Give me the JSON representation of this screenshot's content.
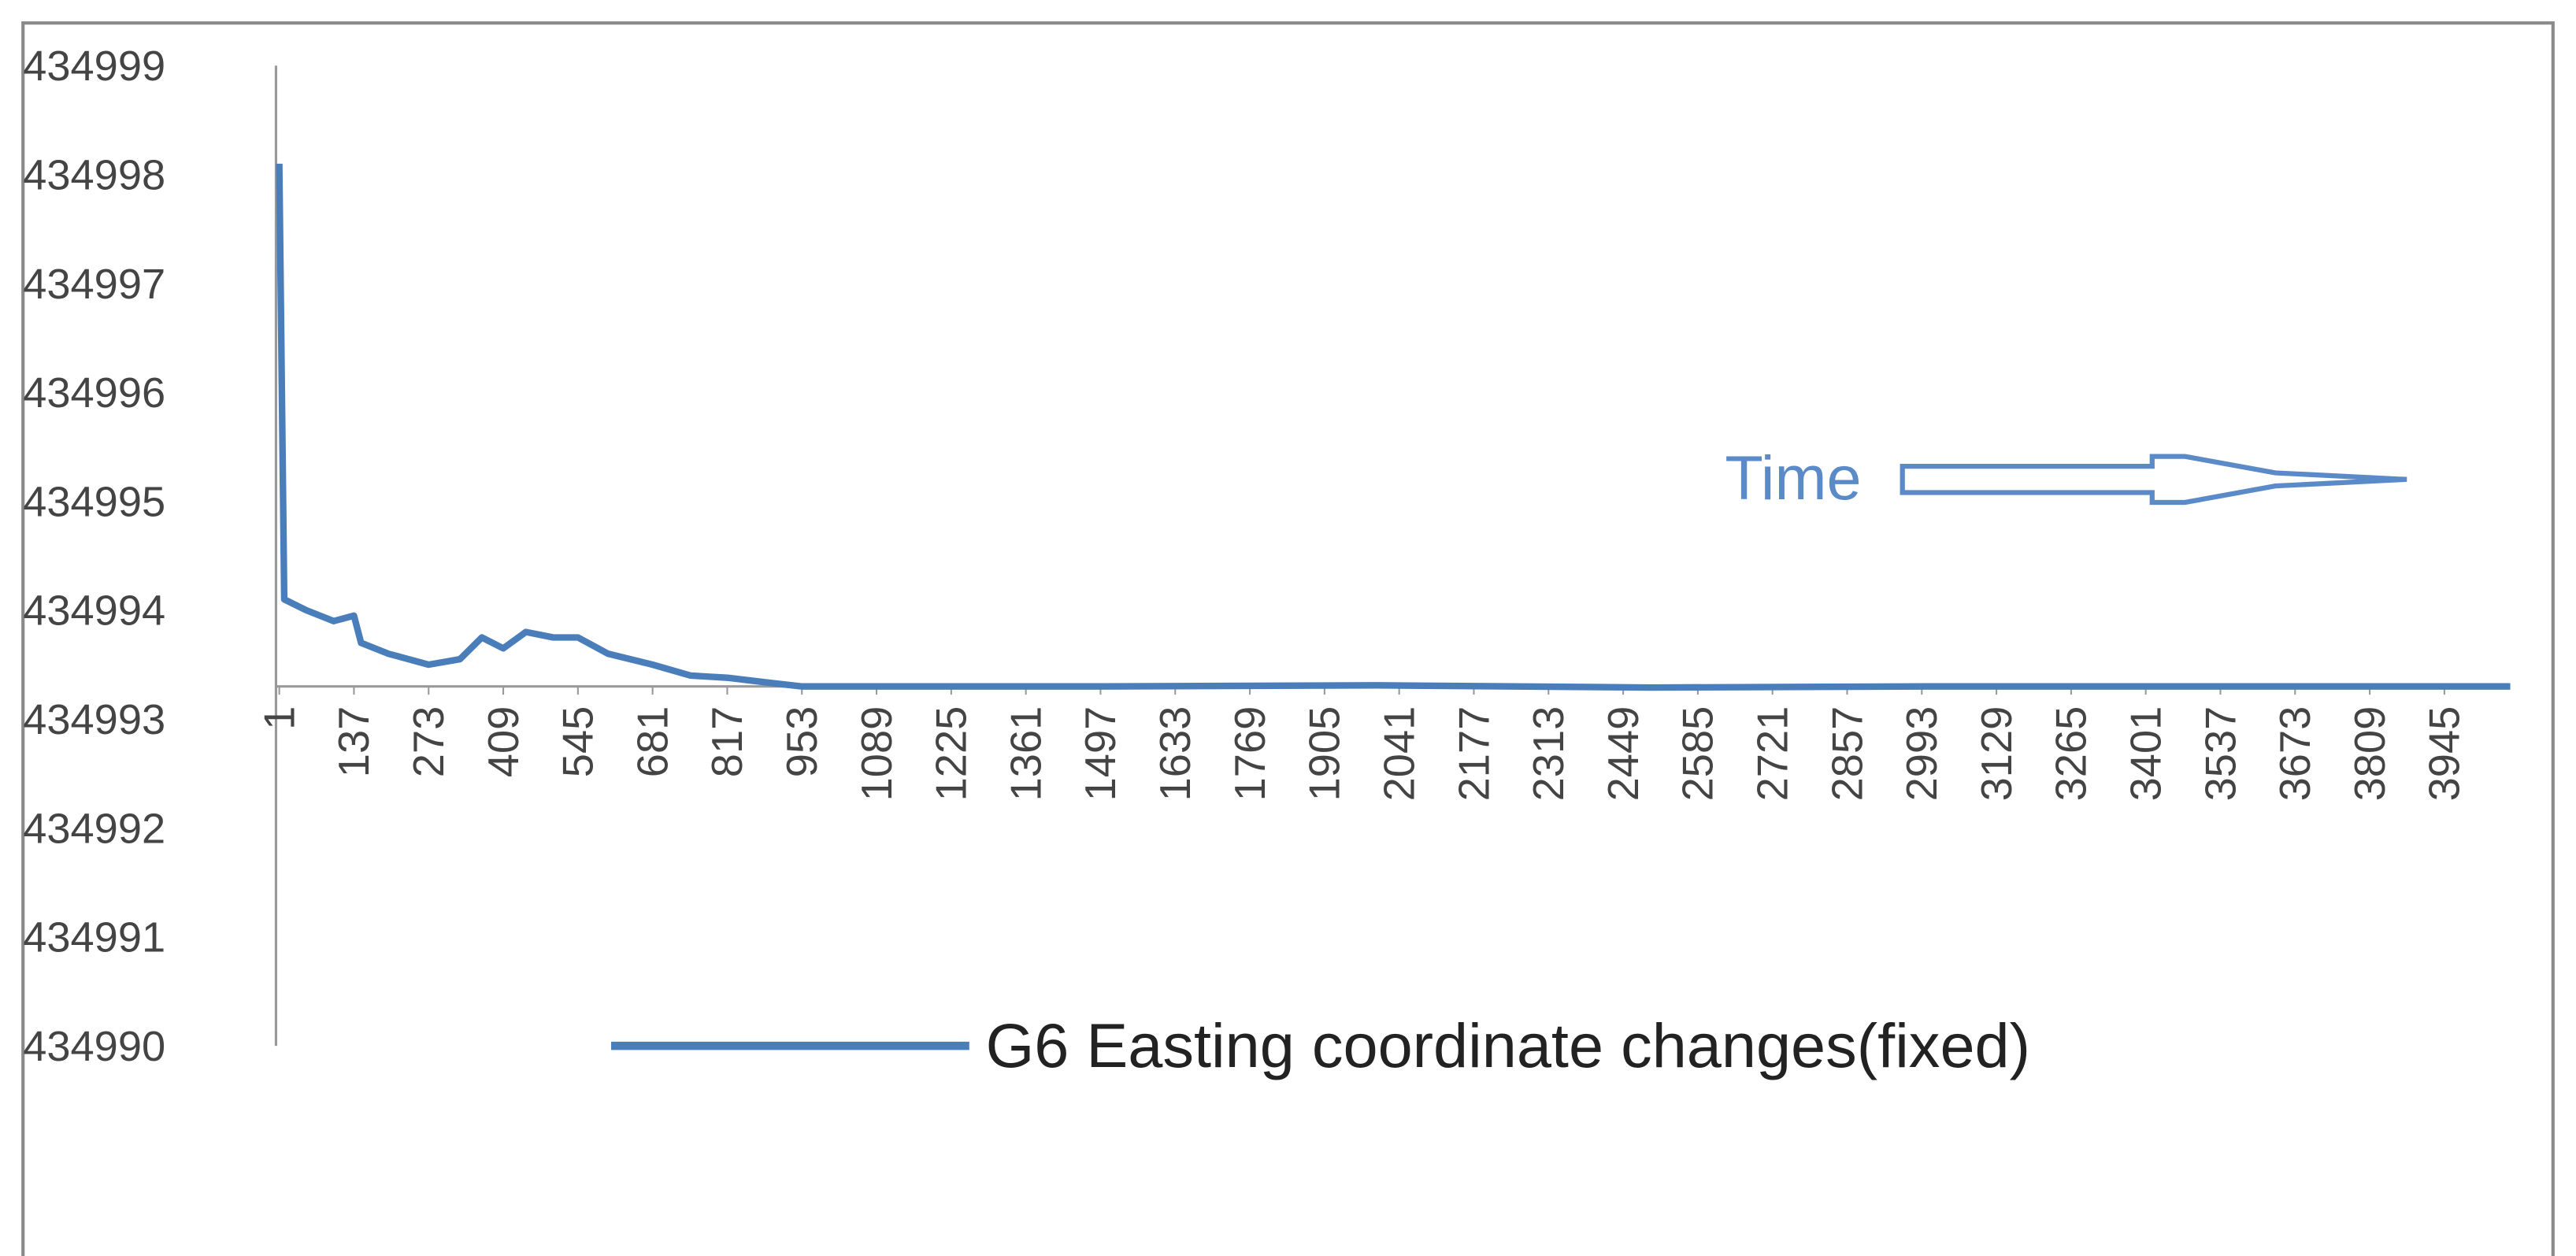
{
  "chart_data": {
    "type": "line",
    "x": [
      1,
      10,
      50,
      100,
      137,
      150,
      200,
      273,
      330,
      370,
      409,
      450,
      500,
      545,
      600,
      681,
      750,
      817,
      900,
      953,
      1500,
      2000,
      2500,
      3000,
      3500,
      4065
    ],
    "series": [
      {
        "name": "G6 Easting coordinate changes(fixed)",
        "color": "#4a7ebb",
        "values": [
          434998.1,
          434994.1,
          434994.0,
          434993.9,
          434993.95,
          434993.7,
          434993.6,
          434993.5,
          434993.55,
          434993.75,
          434993.65,
          434993.8,
          434993.75,
          434993.75,
          434993.6,
          434993.5,
          434993.4,
          434993.38,
          434993.33,
          434993.3,
          434993.3,
          434993.31,
          434993.29,
          434993.3,
          434993.3,
          434993.3
        ]
      }
    ],
    "xlim": [
      1,
      4065
    ],
    "xticks": [
      1,
      137,
      273,
      409,
      545,
      681,
      817,
      953,
      1089,
      1225,
      1361,
      1497,
      1633,
      1769,
      1905,
      2041,
      2177,
      2313,
      2449,
      2585,
      2721,
      2857,
      2993,
      3129,
      3265,
      3401,
      3537,
      3673,
      3809,
      3945
    ],
    "ylim": [
      434990,
      434999
    ],
    "yticks": [
      434990,
      434991,
      434992,
      434993,
      434994,
      434995,
      434996,
      434997,
      434998,
      434999
    ],
    "x_axis_at": 434993.3,
    "annotation": "Time",
    "grid": false
  }
}
